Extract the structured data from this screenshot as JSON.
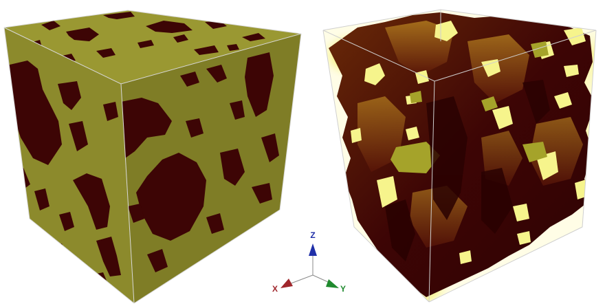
{
  "colors": {
    "background": "#ffffff",
    "solid_matrix": "#8c8a2c",
    "solid_matrix_top": "#9a9832",
    "solid_matrix_side": "#7f7d26",
    "pore": "#3d0505",
    "pore_shade": "#5a1508",
    "pore_glow": "#f6f48c",
    "pore_glow_pale": "#fdfcd8",
    "pore_mid": "#9b6a18",
    "pore_olive": "#a5a32a",
    "cube_edge": "#cfcfcf",
    "axis_x": "#a0262c",
    "axis_y": "#1f8a2e",
    "axis_z": "#1f2fa8",
    "axis_line": "#8a8a8a"
  },
  "axes": {
    "x_label": "X",
    "y_label": "Y",
    "z_label": "Z"
  }
}
